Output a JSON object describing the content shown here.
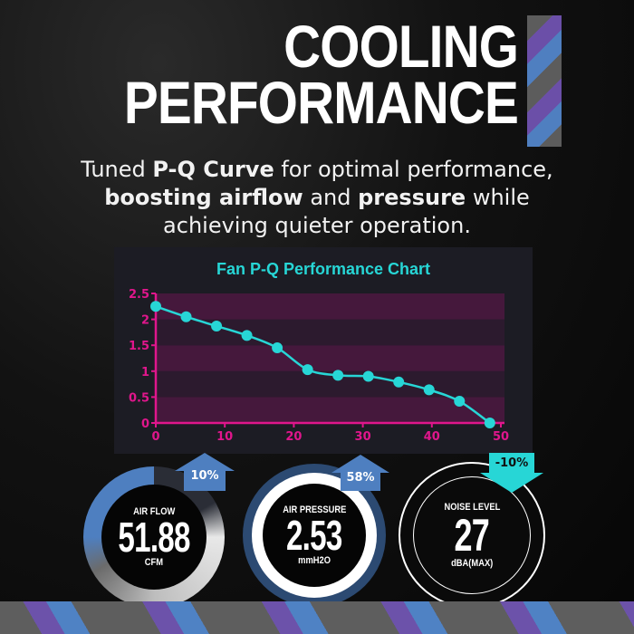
{
  "header": {
    "title_line1": "COOLING",
    "title_line2": "PERFORMANCE"
  },
  "subtitle": {
    "line1_pre": "Tuned ",
    "line1_bold": "P-Q Curve",
    "line1_post": " for optimal performance,",
    "line2_bold1": "boosting airflow",
    "line2_mid": " and ",
    "line2_bold2": "pressure",
    "line2_post": " while",
    "line3": "achieving quieter operation."
  },
  "chart_data": {
    "type": "line",
    "title": "Fan P-Q Performance Chart",
    "xlabel": "",
    "ylabel": "",
    "xlim": [
      0,
      50
    ],
    "ylim": [
      0,
      2.5
    ],
    "x_ticks": [
      "0",
      "10",
      "20",
      "30",
      "40",
      "50"
    ],
    "y_ticks": [
      "0",
      "0.5",
      "1",
      "1.5",
      "2",
      "2.5"
    ],
    "grid": "alternating horizontal bands",
    "series": [
      {
        "name": "P-Q Curve",
        "x": [
          0,
          4.4,
          8.8,
          13.2,
          17.6,
          22,
          26.4,
          30.8,
          35.2,
          39.6,
          44,
          48.4
        ],
        "values": [
          2.25,
          2.05,
          1.87,
          1.69,
          1.45,
          1.03,
          0.92,
          0.9,
          0.79,
          0.64,
          0.42,
          0.0
        ]
      }
    ],
    "colors": {
      "line": "#27d6d6",
      "axis": "#e0168c",
      "band_dark": "#2c1a2e",
      "band_light": "#45183c"
    }
  },
  "gauges": [
    {
      "label": "AIR FLOW",
      "value": "51.88",
      "unit": "CFM",
      "change": "10%",
      "direction": "up"
    },
    {
      "label": "AIR PRESSURE",
      "value": "2.53",
      "unit": "mmH2O",
      "change": "58%",
      "direction": "up"
    },
    {
      "label": "NOISE LEVEL",
      "value": "27",
      "unit": "dBA(MAX)",
      "change": "-10%",
      "direction": "down"
    }
  ],
  "colors": {
    "accent_blue": "#4e7fc0",
    "accent_cyan": "#27d6d6",
    "accent_purple": "#6c52aa",
    "accent_magenta": "#e0168c"
  }
}
